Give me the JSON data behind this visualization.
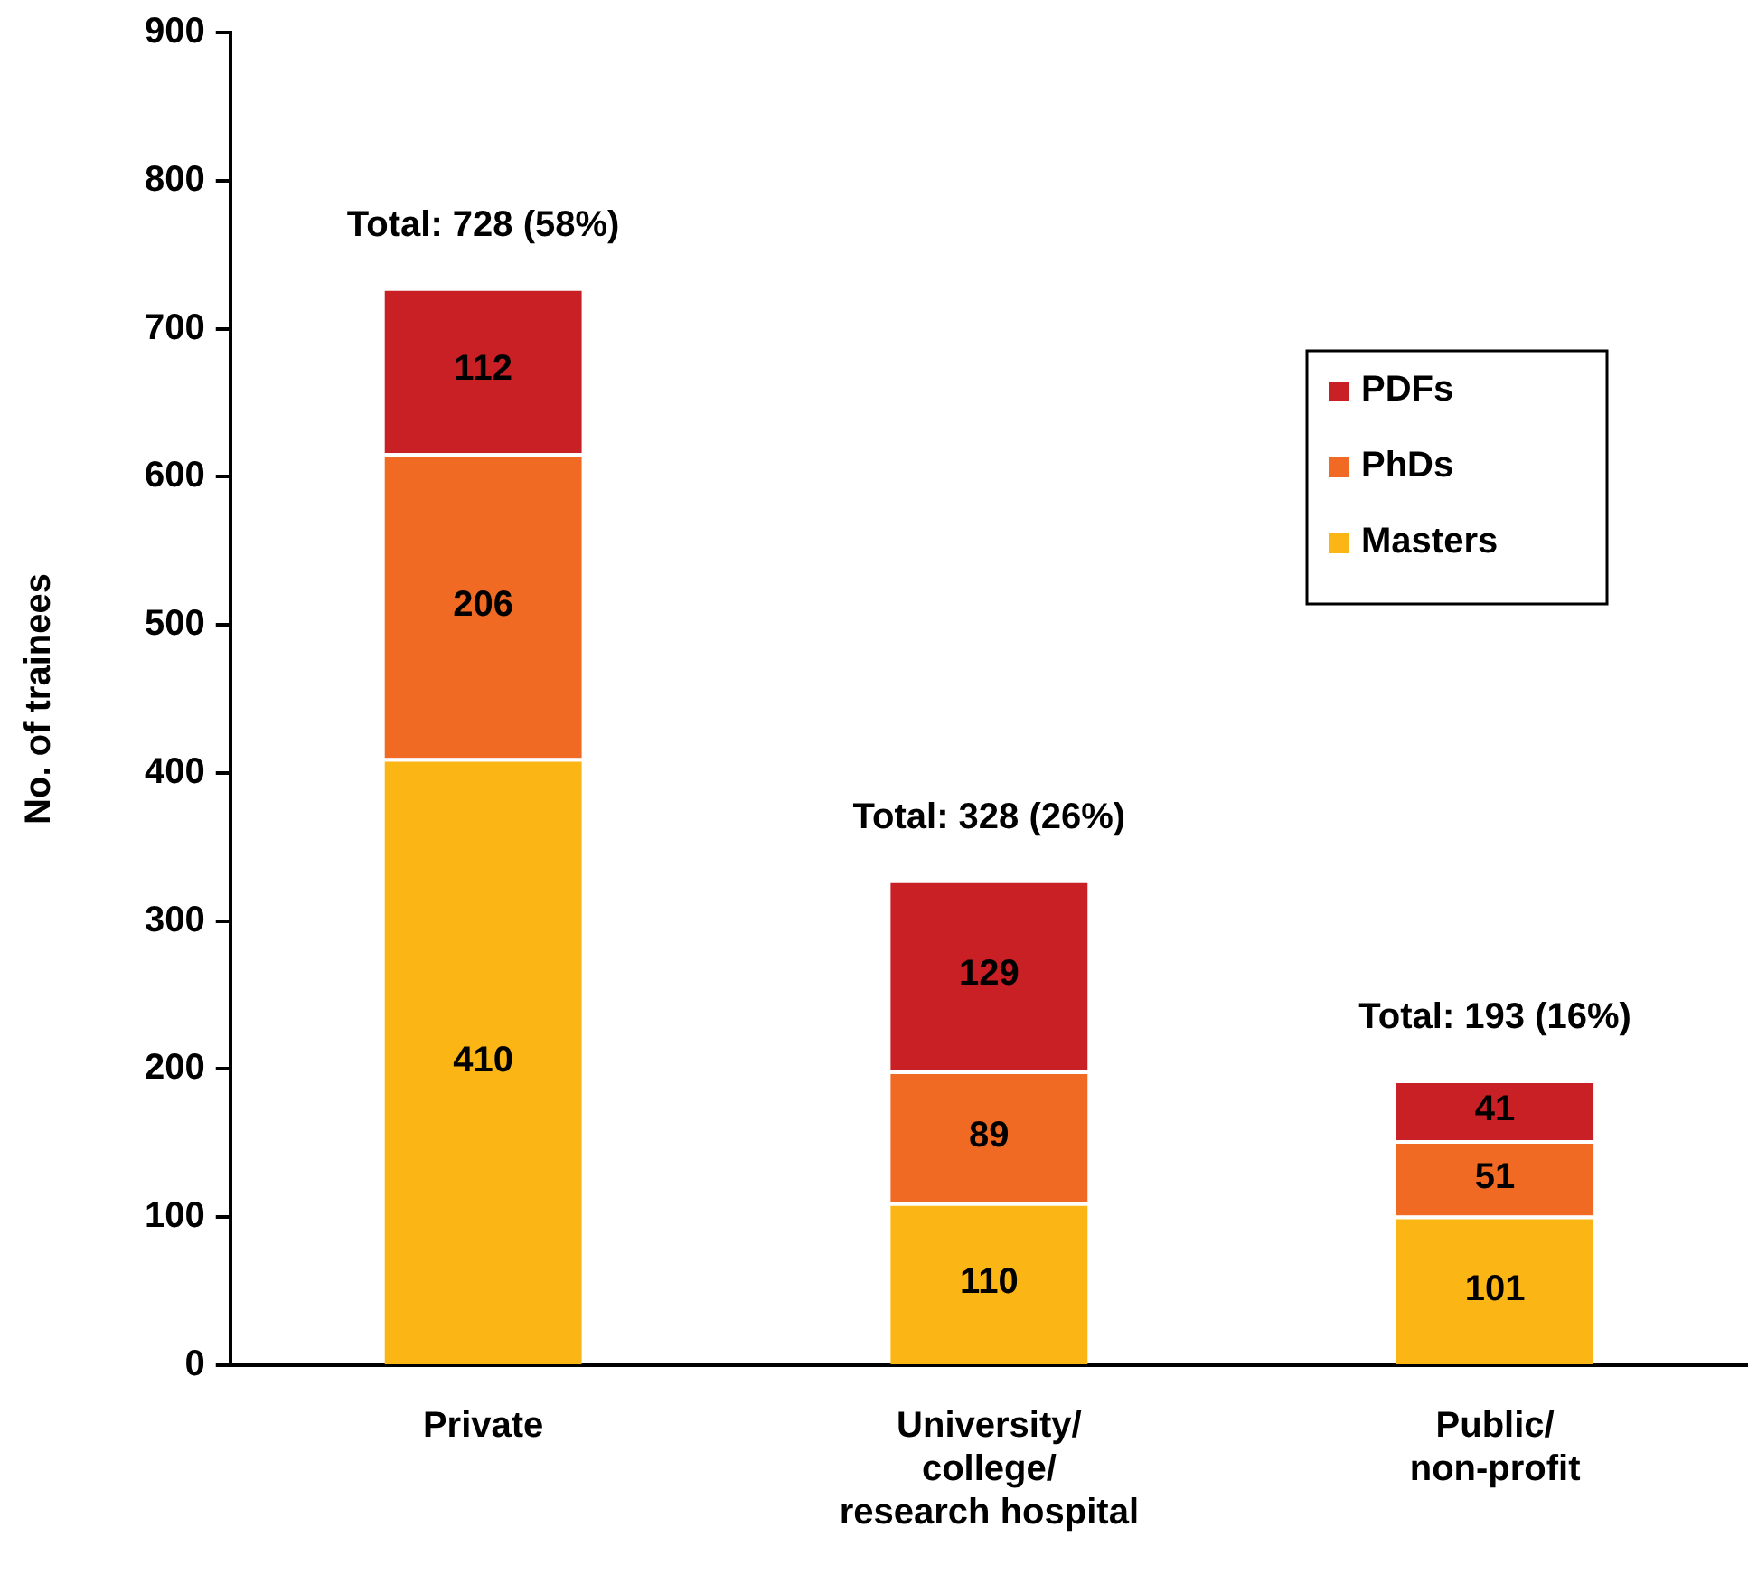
{
  "chart_data": {
    "type": "bar",
    "stacked": true,
    "ylabel": "No. of trainees",
    "categories": [
      "Private",
      "University/\ncollege/\nresearch hospital",
      "Public/\nnon-profit"
    ],
    "series": [
      {
        "name": "Masters",
        "color": "#fbb615",
        "values": [
          410,
          110,
          101
        ]
      },
      {
        "name": "PhDs",
        "color": "#f06a24",
        "values": [
          206,
          89,
          51
        ]
      },
      {
        "name": "PDFs",
        "color": "#c92026",
        "values": [
          112,
          129,
          41
        ]
      }
    ],
    "totals": [
      "Total: 728 (58%)",
      "Total: 328 (26%)",
      "Total: 193 (16%)"
    ],
    "data_labels": true,
    "ylim": [
      0,
      900
    ],
    "yticks": [
      0,
      100,
      200,
      300,
      400,
      500,
      600,
      700,
      800,
      900
    ],
    "grid": false,
    "legend": "top right"
  }
}
